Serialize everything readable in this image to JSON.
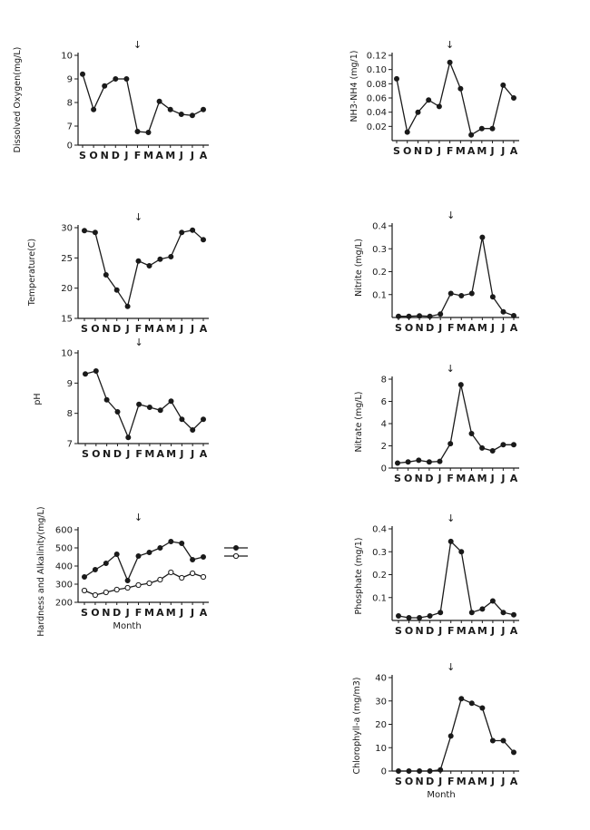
{
  "event_arrow_symbol": "↓",
  "legend_hardness_alkalinity": [
    {
      "style": "filled",
      "label": ""
    },
    {
      "style": "open",
      "label": ""
    }
  ],
  "chart_data": [
    {
      "id": "do",
      "type": "line",
      "ylabel": "Dissolved Oxygen(mg/L)",
      "xlabel": "",
      "categories": [
        "S",
        "O",
        "N",
        "D",
        "J",
        "F",
        "M",
        "A",
        "M",
        "J",
        "J",
        "A"
      ],
      "yticks": [
        0,
        7,
        8,
        9,
        10
      ],
      "ytick_labels": [
        "0",
        "7",
        "8",
        "9",
        "10"
      ],
      "axis_break": true,
      "event_at": "F",
      "series": [
        {
          "marker": "filled",
          "values": [
            9.2,
            7.7,
            8.7,
            9.0,
            9.0,
            6.7,
            6.65,
            8.05,
            7.7,
            7.5,
            7.45,
            7.7
          ]
        }
      ]
    },
    {
      "id": "nh3",
      "type": "line",
      "ylabel": "NH3-NH4 (mg/1)",
      "xlabel": "",
      "categories": [
        "S",
        "O",
        "N",
        "D",
        "J",
        "F",
        "M",
        "A",
        "M",
        "J",
        "J",
        "A"
      ],
      "ylim": [
        0,
        0.12
      ],
      "yticks": [
        0.02,
        0.04,
        0.06,
        0.08,
        0.1,
        0.12
      ],
      "ytick_labels": [
        "0.02",
        "0.04",
        "0.06",
        "0.08",
        "0.10",
        "0.12"
      ],
      "event_at": "F",
      "series": [
        {
          "marker": "filled",
          "values": [
            0.087,
            0.012,
            0.04,
            0.057,
            0.048,
            0.11,
            0.073,
            0.008,
            0.017,
            0.017,
            0.078,
            0.06
          ]
        }
      ]
    },
    {
      "id": "temp",
      "type": "line",
      "ylabel": "Temperature(C)",
      "xlabel": "",
      "categories": [
        "S",
        "O",
        "N",
        "D",
        "J",
        "F",
        "M",
        "A",
        "M",
        "J",
        "J",
        "A"
      ],
      "ylim": [
        15,
        30
      ],
      "yticks": [
        15,
        20,
        25,
        30
      ],
      "ytick_labels": [
        "15",
        "20",
        "25",
        "30"
      ],
      "event_at": "F",
      "series": [
        {
          "marker": "filled",
          "values": [
            29.5,
            29.2,
            22.2,
            19.7,
            17.0,
            24.5,
            23.7,
            24.8,
            25.2,
            29.2,
            29.6,
            28.0
          ]
        }
      ]
    },
    {
      "id": "nitrite",
      "type": "line",
      "ylabel": "Nitrite (mg/L)",
      "xlabel": "",
      "categories": [
        "S",
        "O",
        "N",
        "D",
        "J",
        "F",
        "M",
        "A",
        "M",
        "J",
        "J",
        "A"
      ],
      "ylim": [
        0,
        0.4
      ],
      "yticks": [
        0.1,
        0.2,
        0.3,
        0.4
      ],
      "ytick_labels": [
        "0.1",
        "0.2",
        "0.3",
        "0.4"
      ],
      "event_at": "F",
      "series": [
        {
          "marker": "filled",
          "values": [
            0.005,
            0.005,
            0.007,
            0.005,
            0.015,
            0.105,
            0.095,
            0.105,
            0.35,
            0.09,
            0.025,
            0.008
          ]
        }
      ]
    },
    {
      "id": "ph",
      "type": "line",
      "ylabel": "pH",
      "xlabel": "",
      "categories": [
        "S",
        "O",
        "N",
        "D",
        "J",
        "F",
        "M",
        "A",
        "M",
        "J",
        "J",
        "A"
      ],
      "ylim": [
        7,
        10
      ],
      "yticks": [
        7,
        8,
        9,
        10
      ],
      "ytick_labels": [
        "7",
        "8",
        "9",
        "10"
      ],
      "event_at": "F",
      "series": [
        {
          "marker": "filled",
          "values": [
            9.3,
            9.4,
            8.45,
            8.05,
            7.2,
            8.3,
            8.2,
            8.1,
            8.4,
            7.8,
            7.45,
            7.8
          ]
        }
      ]
    },
    {
      "id": "nitrate",
      "type": "line",
      "ylabel": "Nitrate (mg/L)",
      "xlabel": "",
      "categories": [
        "S",
        "O",
        "N",
        "D",
        "J",
        "F",
        "M",
        "A",
        "M",
        "J",
        "J",
        "A"
      ],
      "ylim": [
        0,
        8
      ],
      "yticks": [
        0,
        2,
        4,
        6,
        8
      ],
      "ytick_labels": [
        "0",
        "2",
        "4",
        "6",
        "8"
      ],
      "event_at": "F",
      "series": [
        {
          "marker": "filled",
          "values": [
            0.45,
            0.55,
            0.7,
            0.55,
            0.6,
            2.2,
            7.5,
            3.1,
            1.8,
            1.55,
            2.1,
            2.1
          ]
        }
      ]
    },
    {
      "id": "hardness",
      "type": "line",
      "ylabel": "Hardness and Alkalinity(mg/L)",
      "xlabel": "Month",
      "categories": [
        "S",
        "O",
        "N",
        "D",
        "J",
        "F",
        "M",
        "A",
        "M",
        "J",
        "J",
        "A"
      ],
      "ylim": [
        200,
        600
      ],
      "yticks": [
        200,
        300,
        400,
        500,
        600
      ],
      "ytick_labels": [
        "200",
        "300",
        "400",
        "500",
        "600"
      ],
      "event_at": "F",
      "series": [
        {
          "marker": "filled",
          "values": [
            340,
            380,
            415,
            465,
            320,
            455,
            475,
            500,
            535,
            525,
            435,
            450
          ]
        },
        {
          "marker": "open",
          "values": [
            265,
            240,
            255,
            270,
            280,
            295,
            305,
            325,
            365,
            335,
            360,
            340
          ]
        }
      ]
    },
    {
      "id": "phosphate",
      "type": "line",
      "ylabel": "Phosphate (mg/1)",
      "xlabel": "",
      "categories": [
        "S",
        "O",
        "N",
        "D",
        "J",
        "F",
        "M",
        "A",
        "M",
        "J",
        "J",
        "A"
      ],
      "ylim": [
        0,
        0.4
      ],
      "yticks": [
        0.1,
        0.2,
        0.3,
        0.4
      ],
      "ytick_labels": [
        "0.1",
        "0.2",
        "0.3",
        "0.4"
      ],
      "event_at": "F",
      "series": [
        {
          "marker": "filled",
          "values": [
            0.02,
            0.012,
            0.012,
            0.02,
            0.035,
            0.345,
            0.3,
            0.035,
            0.05,
            0.085,
            0.035,
            0.025
          ]
        }
      ]
    },
    {
      "id": "chl",
      "type": "line",
      "ylabel": "Chlorophyll-a (mg/m3)",
      "xlabel": "Month",
      "categories": [
        "S",
        "O",
        "N",
        "D",
        "J",
        "F",
        "M",
        "A",
        "M",
        "J",
        "J",
        "A"
      ],
      "ylim": [
        0,
        40
      ],
      "yticks": [
        0,
        10,
        20,
        30,
        40
      ],
      "ytick_labels": [
        "0",
        "10",
        "20",
        "30",
        "40"
      ],
      "event_at": "F",
      "series": [
        {
          "marker": "filled",
          "values": [
            0,
            0,
            0,
            0,
            0.5,
            15,
            31,
            29,
            27,
            13,
            13,
            8
          ]
        }
      ]
    }
  ]
}
